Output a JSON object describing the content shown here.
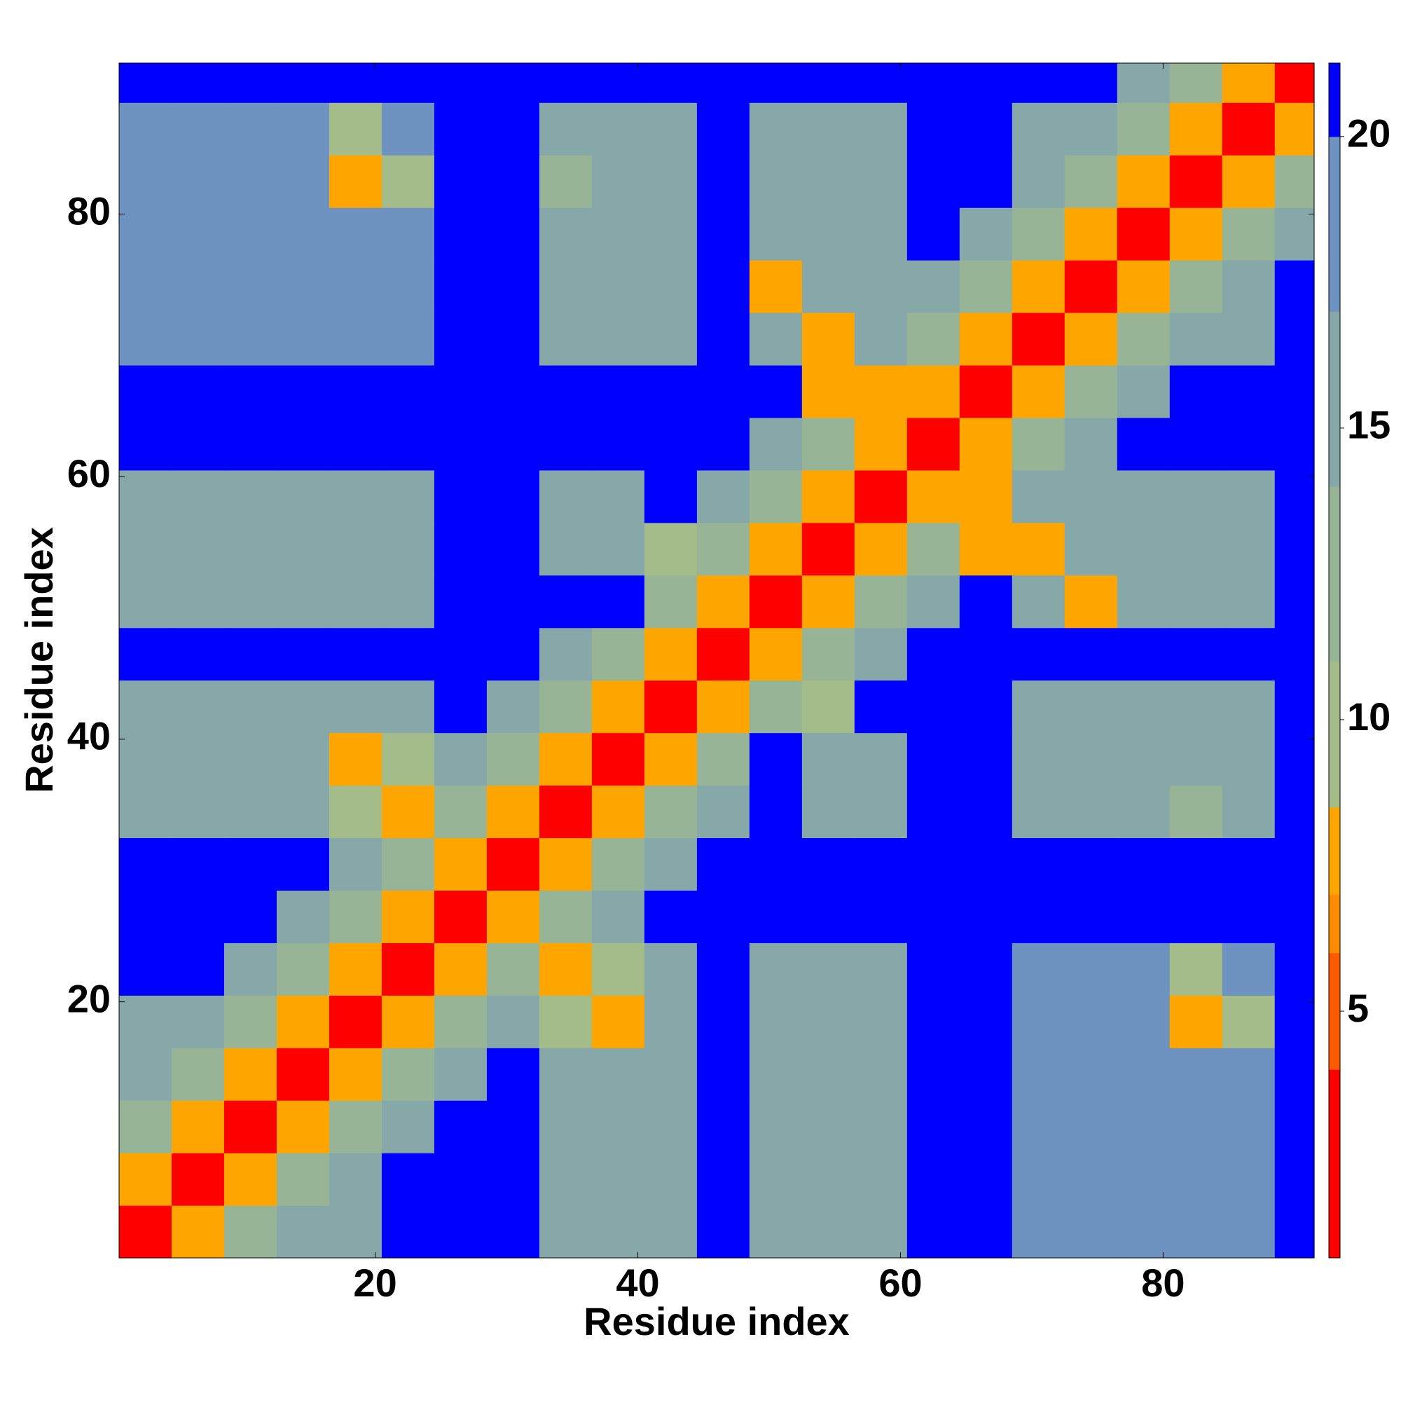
{
  "chart_data": {
    "type": "heatmap",
    "xlabel": "Residue index",
    "ylabel": "Residue index",
    "x": [
      2.5,
      6.5,
      10.5,
      14.5,
      18.5,
      22.5,
      26.5,
      30.5,
      34.5,
      38.5,
      42.5,
      46.5,
      50.5,
      54.5,
      58.5,
      62.5,
      66.5,
      70.5,
      74.5,
      78.5,
      82.5,
      86.5,
      90.5
    ],
    "y": [
      2.5,
      6.5,
      10.5,
      14.5,
      18.5,
      22.5,
      26.5,
      30.5,
      34.5,
      38.5,
      42.5,
      46.5,
      50.5,
      54.5,
      58.5,
      62.5,
      66.5,
      70.5,
      74.5,
      78.5,
      82.5,
      86.5,
      90.5
    ],
    "z": [
      [
        2,
        7,
        12,
        16,
        14,
        21,
        21,
        21,
        14,
        14,
        14,
        21,
        16,
        16,
        16,
        21,
        21,
        17,
        17,
        17,
        17,
        17,
        21
      ],
      [
        7,
        2,
        7,
        12,
        16,
        21,
        21,
        21,
        14,
        14,
        14,
        21,
        16,
        16,
        16,
        21,
        21,
        17,
        17,
        17,
        17,
        17,
        21
      ],
      [
        12,
        7,
        2,
        7,
        12,
        16,
        21,
        21,
        14,
        14,
        14,
        21,
        16,
        16,
        16,
        21,
        21,
        17,
        17,
        17,
        17,
        17,
        21
      ],
      [
        16,
        12,
        7,
        2,
        7,
        12,
        16,
        21,
        14,
        14,
        14,
        21,
        16,
        16,
        16,
        21,
        21,
        17,
        17,
        17,
        17,
        17,
        21
      ],
      [
        14,
        16,
        12,
        7,
        2,
        7,
        12,
        16,
        10,
        7,
        14,
        21,
        16,
        16,
        16,
        21,
        21,
        17,
        17,
        17,
        7,
        9,
        21
      ],
      [
        21,
        21,
        16,
        12,
        7,
        2,
        7,
        12,
        7,
        9,
        14,
        21,
        16,
        16,
        16,
        21,
        21,
        17,
        17,
        17,
        9,
        17,
        21
      ],
      [
        21,
        21,
        21,
        16,
        12,
        7,
        2,
        7,
        12,
        16,
        21,
        21,
        21,
        21,
        21,
        21,
        21,
        21,
        21,
        21,
        21,
        21,
        21
      ],
      [
        21,
        21,
        21,
        21,
        16,
        12,
        7,
        2,
        7,
        12,
        16,
        21,
        21,
        21,
        21,
        21,
        21,
        21,
        21,
        21,
        21,
        21,
        21
      ],
      [
        14,
        14,
        14,
        14,
        10,
        7,
        12,
        7,
        2,
        7,
        12,
        16,
        21,
        15,
        15,
        21,
        21,
        16,
        16,
        16,
        11,
        16,
        21
      ],
      [
        14,
        14,
        14,
        14,
        7,
        9,
        16,
        12,
        7,
        2,
        7,
        12,
        21,
        15,
        15,
        21,
        21,
        16,
        16,
        16,
        16,
        16,
        21
      ],
      [
        14,
        14,
        14,
        14,
        14,
        14,
        21,
        16,
        12,
        7,
        2,
        7,
        12,
        9,
        21,
        21,
        21,
        16,
        16,
        16,
        16,
        16,
        21
      ],
      [
        21,
        21,
        21,
        21,
        21,
        21,
        21,
        21,
        16,
        12,
        7,
        2,
        7,
        12,
        16,
        21,
        21,
        21,
        21,
        21,
        21,
        21,
        21
      ],
      [
        16,
        16,
        16,
        16,
        16,
        16,
        21,
        21,
        21,
        21,
        12,
        7,
        2,
        7,
        12,
        16,
        21,
        16,
        7,
        16,
        16,
        16,
        21
      ],
      [
        16,
        16,
        16,
        16,
        16,
        16,
        21,
        21,
        15,
        15,
        9,
        12,
        7,
        2,
        7,
        12,
        8,
        7,
        16,
        16,
        16,
        16,
        21
      ],
      [
        16,
        16,
        16,
        16,
        16,
        16,
        21,
        21,
        15,
        15,
        21,
        16,
        12,
        7,
        2,
        7,
        8,
        16,
        16,
        16,
        16,
        16,
        21
      ],
      [
        21,
        21,
        21,
        21,
        21,
        21,
        21,
        21,
        21,
        21,
        21,
        21,
        16,
        12,
        7,
        2,
        7,
        12,
        16,
        21,
        21,
        21,
        21
      ],
      [
        21,
        21,
        21,
        21,
        21,
        21,
        21,
        21,
        21,
        21,
        21,
        21,
        21,
        8,
        8,
        7,
        2,
        7,
        12,
        16,
        21,
        21,
        21
      ],
      [
        17,
        17,
        17,
        17,
        17,
        17,
        21,
        21,
        16,
        16,
        16,
        21,
        16,
        7,
        16,
        12,
        7,
        2,
        7,
        12,
        16,
        14,
        21
      ],
      [
        17,
        17,
        17,
        17,
        17,
        17,
        21,
        21,
        16,
        16,
        16,
        21,
        7,
        16,
        16,
        16,
        12,
        7,
        2,
        7,
        12,
        16,
        21
      ],
      [
        17,
        17,
        17,
        17,
        17,
        17,
        21,
        21,
        16,
        16,
        16,
        21,
        16,
        16,
        16,
        21,
        16,
        12,
        7,
        2,
        7,
        12,
        16
      ],
      [
        17,
        17,
        17,
        17,
        7,
        9,
        21,
        21,
        11,
        16,
        16,
        21,
        16,
        16,
        16,
        21,
        21,
        16,
        12,
        7,
        2,
        7,
        12
      ],
      [
        17,
        17,
        17,
        17,
        9,
        17,
        21,
        21,
        16,
        16,
        16,
        21,
        16,
        16,
        16,
        21,
        21,
        14,
        16,
        12,
        7,
        2,
        7
      ],
      [
        21,
        21,
        21,
        21,
        21,
        21,
        21,
        21,
        21,
        21,
        21,
        21,
        21,
        21,
        21,
        21,
        21,
        21,
        21,
        16,
        12,
        7,
        2
      ]
    ],
    "xlim": [
      0.5,
      91.5
    ],
    "ylim": [
      0.5,
      91.5
    ],
    "xticks": [
      20,
      40,
      60,
      80
    ],
    "yticks": [
      20,
      40,
      60,
      80
    ],
    "colorbar": {
      "lim": [
        0.77,
        21.26
      ],
      "ticks": [
        5,
        10,
        15,
        20
      ]
    },
    "colorscale": [
      [
        0.77,
        "#ff0000"
      ],
      [
        4,
        "#ff5a00"
      ],
      [
        6,
        "#ff8c00"
      ],
      [
        7,
        "#ffa500"
      ],
      [
        8.5,
        "#a4bb8a"
      ],
      [
        11,
        "#97b596"
      ],
      [
        14,
        "#86a8a8"
      ],
      [
        17,
        "#6f93c0"
      ],
      [
        20,
        "#0000ff"
      ]
    ]
  }
}
